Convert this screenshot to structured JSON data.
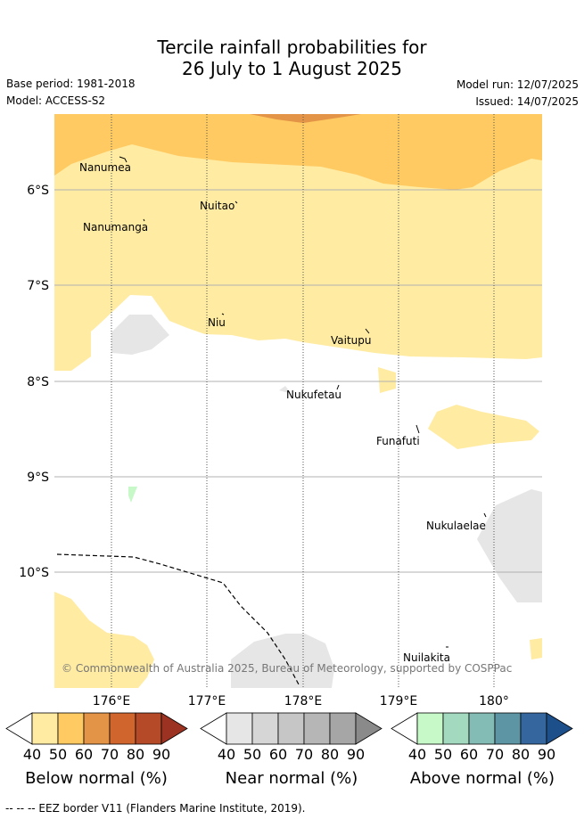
{
  "header": {
    "title_line1": "Tercile rainfall probabilities for",
    "title_line2": "26 July to 1 August 2025",
    "base_period": "Base period: 1981-2018",
    "model": "Model: ACCESS-S2",
    "model_run": "Model run: 12/07/2025",
    "issued": "Issued: 14/07/2025"
  },
  "map": {
    "lon_labels": [
      "176°E",
      "177°E",
      "178°E",
      "179°E",
      "180°"
    ],
    "lat_labels": [
      "6°S",
      "7°S",
      "8°S",
      "9°S",
      "10°S"
    ],
    "places": [
      "Nanumea",
      "Nuitao",
      "Nanumanga",
      "Niu",
      "Vaitupu",
      "Nukufetau",
      "Funafuti",
      "Nukulaelae",
      "Nuilakita"
    ],
    "copyright": "© Commonwealth of Australia 2025, Bureau of Meteorology, supported by COSPPac"
  },
  "legends": [
    {
      "title": "Below normal (%)",
      "ticks": [
        "40",
        "50",
        "60",
        "70",
        "80",
        "90"
      ],
      "colors": [
        "#ffeba2",
        "#ffca62",
        "#e39446",
        "#d0652e",
        "#b44a28",
        "#9c3322"
      ]
    },
    {
      "title": "Near normal (%)",
      "ticks": [
        "40",
        "50",
        "60",
        "70",
        "80",
        "90"
      ],
      "colors": [
        "#e6e6e6",
        "#d6d6d6",
        "#c6c6c6",
        "#b6b6b6",
        "#a6a6a6",
        "#8a8a8a"
      ]
    },
    {
      "title": "Above normal (%)",
      "ticks": [
        "40",
        "50",
        "60",
        "70",
        "80",
        "90"
      ],
      "colors": [
        "#c6f8c8",
        "#a2d9bf",
        "#82bcb4",
        "#5e95a4",
        "#35679e",
        "#1d4f8a"
      ]
    }
  ],
  "footnote": "--  --  -- EEZ border V11 (Flanders Marine Institute, 2019)."
}
